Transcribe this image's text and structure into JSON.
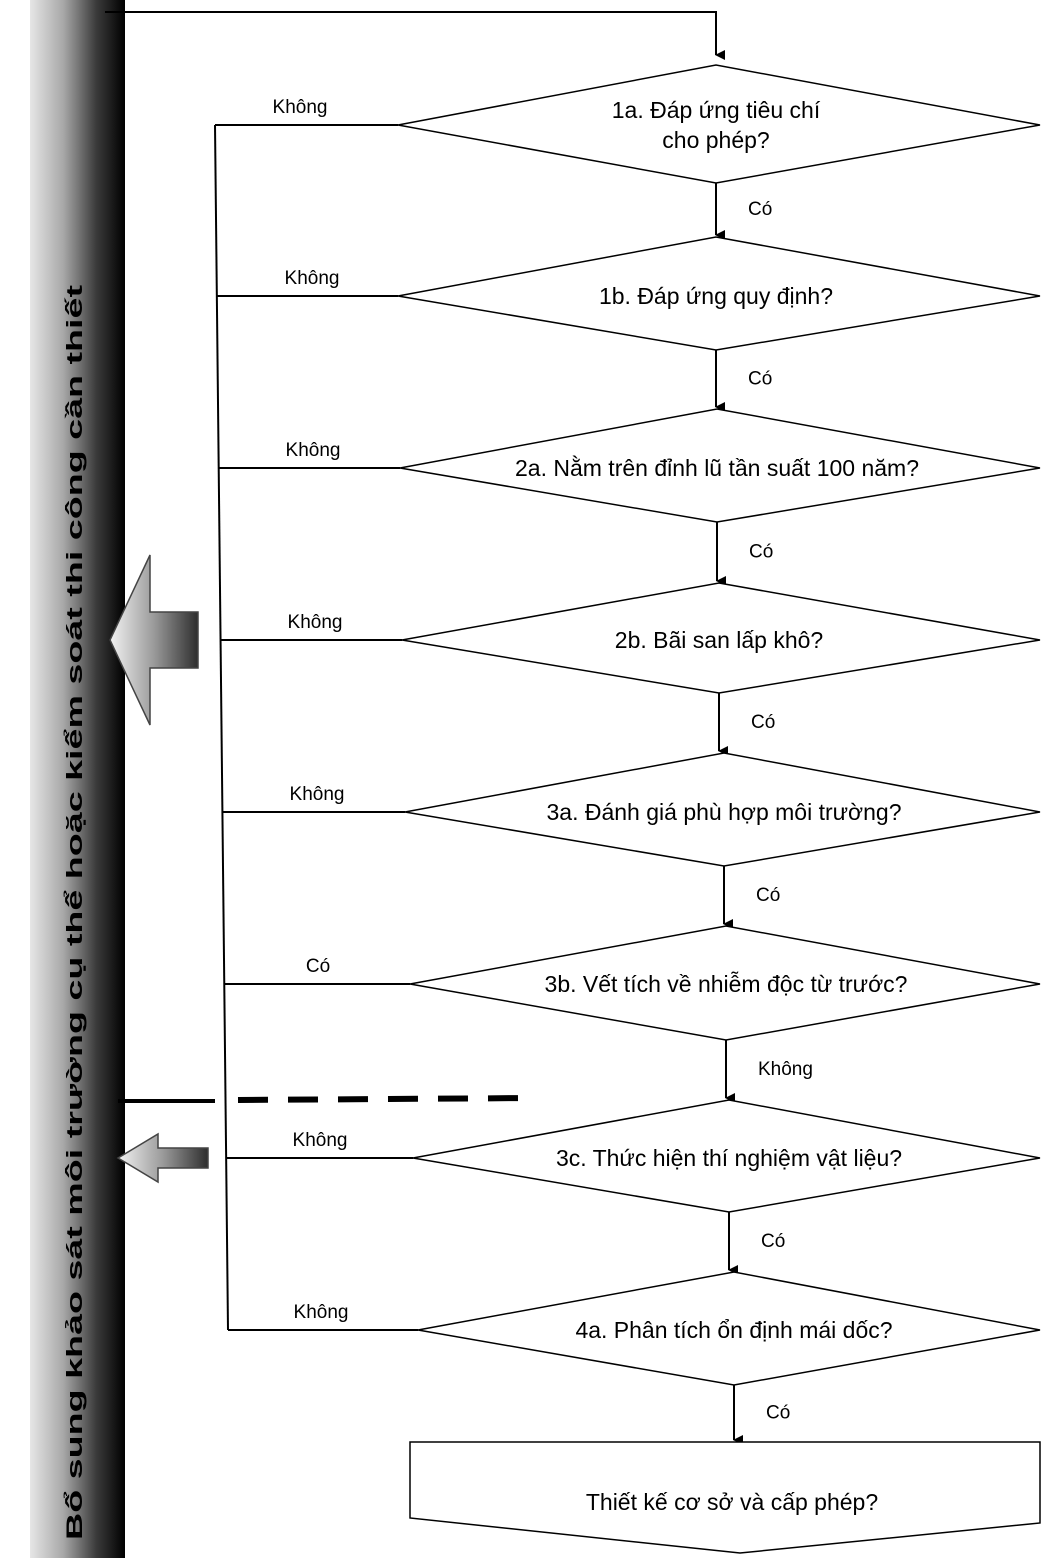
{
  "sidebar": {
    "label": "Bổ sung khảo sát môi trường cụ thể hoặc kiểm soát thi công cần thiết"
  },
  "decisions": [
    {
      "id": "1a",
      "lines": [
        "1a. Đáp ứng tiêu chí",
        "cho phép?"
      ],
      "left_label": "Không",
      "down_label": "Có"
    },
    {
      "id": "1b",
      "lines": [
        "1b. Đáp ứng quy định?"
      ],
      "left_label": "Không",
      "down_label": "Có"
    },
    {
      "id": "2a",
      "lines": [
        "2a. Nằm trên đỉnh lũ tần suất 100 năm?"
      ],
      "left_label": "Không",
      "down_label": "Có"
    },
    {
      "id": "2b",
      "lines": [
        "2b. Bãi san lấp khô?"
      ],
      "left_label": "Không",
      "down_label": "Có"
    },
    {
      "id": "3a",
      "lines": [
        "3a. Đánh giá phù hợp môi trường?"
      ],
      "left_label": "Không",
      "down_label": "Có"
    },
    {
      "id": "3b",
      "lines": [
        "3b. Vết tích về nhiễm độc từ trước?"
      ],
      "left_label": "Có",
      "down_label": "Không"
    },
    {
      "id": "3c",
      "lines": [
        "3c. Thức hiện thí nghiệm vật liệu?"
      ],
      "left_label": "Không",
      "down_label": "Có"
    },
    {
      "id": "4a",
      "lines": [
        "4a. Phân tích ổn định mái dốc?"
      ],
      "left_label": "Không",
      "down_label": "Có"
    }
  ],
  "final": {
    "label": "Thiết kế cơ sở và cấp phép?"
  }
}
